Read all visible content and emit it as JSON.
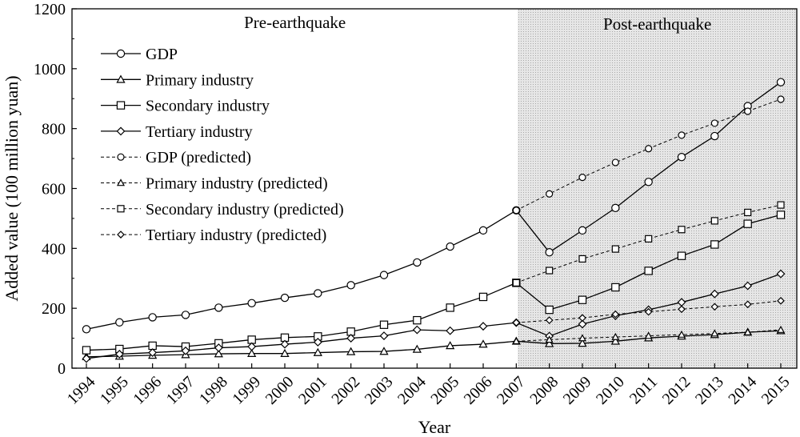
{
  "chart_data": {
    "type": "line",
    "xlabel": "Year",
    "ylabel": "Added value (100 million yuan)",
    "ylim": [
      0,
      1200
    ],
    "yticks": [
      0,
      200,
      400,
      600,
      800,
      1000,
      1200
    ],
    "categories": [
      "1994",
      "1995",
      "1996",
      "1997",
      "1998",
      "1999",
      "2000",
      "2001",
      "2002",
      "2003",
      "2004",
      "2005",
      "2006",
      "2007",
      "2008",
      "2009",
      "2010",
      "2011",
      "2012",
      "2013",
      "2014",
      "2015"
    ],
    "regions": [
      {
        "label": "Pre-earthquake",
        "shaded": false
      },
      {
        "label": "Post-earthquake",
        "shaded": true,
        "from_year": "2007",
        "shade_color": "#dcdcdc"
      }
    ],
    "legend_position": "upper-left",
    "series": [
      {
        "name": "GDP",
        "marker": "circle",
        "dashed": false,
        "x": [
          "1994",
          "1995",
          "1996",
          "1997",
          "1998",
          "1999",
          "2000",
          "2001",
          "2002",
          "2003",
          "2004",
          "2005",
          "2006",
          "2007",
          "2008",
          "2009",
          "2010",
          "2011",
          "2012",
          "2013",
          "2014",
          "2015"
        ],
        "values": [
          130,
          153,
          170,
          178,
          202,
          217,
          235,
          250,
          277,
          311,
          353,
          406,
          460,
          527,
          387,
          460,
          535,
          622,
          705,
          775,
          875,
          955
        ]
      },
      {
        "name": "Primary industry",
        "marker": "triangle",
        "dashed": false,
        "x": [
          "1994",
          "1995",
          "1996",
          "1997",
          "1998",
          "1999",
          "2000",
          "2001",
          "2002",
          "2003",
          "2004",
          "2005",
          "2006",
          "2007",
          "2008",
          "2009",
          "2010",
          "2011",
          "2012",
          "2013",
          "2014",
          "2015"
        ],
        "values": [
          38,
          40,
          43,
          45,
          48,
          49,
          49,
          52,
          55,
          56,
          63,
          75,
          80,
          90,
          82,
          83,
          90,
          101,
          107,
          112,
          120,
          125
        ]
      },
      {
        "name": "Secondary industry",
        "marker": "square",
        "dashed": false,
        "x": [
          "1994",
          "1995",
          "1996",
          "1997",
          "1998",
          "1999",
          "2000",
          "2001",
          "2002",
          "2003",
          "2004",
          "2005",
          "2006",
          "2007",
          "2008",
          "2009",
          "2010",
          "2011",
          "2012",
          "2013",
          "2014",
          "2015"
        ],
        "values": [
          60,
          64,
          75,
          72,
          83,
          95,
          102,
          106,
          122,
          145,
          160,
          202,
          238,
          285,
          195,
          228,
          270,
          325,
          375,
          413,
          482,
          512
        ]
      },
      {
        "name": "Tertiary industry",
        "marker": "diamond",
        "dashed": false,
        "x": [
          "1994",
          "1995",
          "1996",
          "1997",
          "1998",
          "1999",
          "2000",
          "2001",
          "2002",
          "2003",
          "2004",
          "2005",
          "2006",
          "2007",
          "2008",
          "2009",
          "2010",
          "2011",
          "2012",
          "2013",
          "2014",
          "2015"
        ],
        "values": [
          32,
          47,
          52,
          58,
          68,
          72,
          80,
          87,
          100,
          108,
          128,
          125,
          140,
          152,
          107,
          147,
          175,
          195,
          220,
          248,
          275,
          315
        ]
      },
      {
        "name": "GDP (predicted)",
        "marker": "circle",
        "dashed": true,
        "x": [
          "2007",
          "2008",
          "2009",
          "2010",
          "2011",
          "2012",
          "2013",
          "2014",
          "2015"
        ],
        "values": [
          527,
          582,
          637,
          687,
          733,
          778,
          818,
          858,
          898
        ]
      },
      {
        "name": "Primary industry (predicted)",
        "marker": "triangle",
        "dashed": true,
        "x": [
          "2007",
          "2008",
          "2009",
          "2010",
          "2011",
          "2012",
          "2013",
          "2014",
          "2015"
        ],
        "values": [
          90,
          95,
          100,
          104,
          108,
          112,
          116,
          120,
          128
        ]
      },
      {
        "name": "Secondary industry (predicted)",
        "marker": "square",
        "dashed": true,
        "x": [
          "2007",
          "2008",
          "2009",
          "2010",
          "2011",
          "2012",
          "2013",
          "2014",
          "2015"
        ],
        "values": [
          285,
          326,
          365,
          398,
          432,
          463,
          492,
          520,
          545
        ]
      },
      {
        "name": "Tertiary industry (predicted)",
        "marker": "diamond",
        "dashed": true,
        "x": [
          "2007",
          "2008",
          "2009",
          "2010",
          "2011",
          "2012",
          "2013",
          "2014",
          "2015"
        ],
        "values": [
          152,
          160,
          168,
          180,
          188,
          197,
          205,
          213,
          225
        ]
      }
    ]
  }
}
